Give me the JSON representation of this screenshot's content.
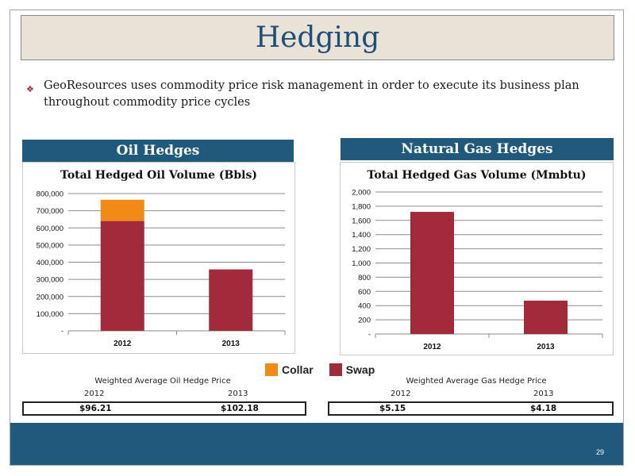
{
  "page": {
    "title": "Hedging",
    "bullet": "GeoResources uses commodity price risk management in order to execute its business plan throughout commodity price cycles",
    "page_number": "29"
  },
  "legend": {
    "items": [
      {
        "label": "Collar",
        "color": "#f28a18"
      },
      {
        "label": "Swap",
        "color": "#a12a3b"
      }
    ]
  },
  "oil": {
    "panel_title": "Oil Hedges",
    "price_title": "Weighted Average Oil Hedge Price",
    "years": [
      "2012",
      "2013"
    ],
    "prices": [
      "$96.21",
      "$102.18"
    ]
  },
  "gas": {
    "panel_title": "Natural Gas Hedges",
    "price_title": "Weighted Average Gas Hedge Price",
    "years": [
      "2012",
      "2013"
    ],
    "prices": [
      "$5.15",
      "$4.18"
    ]
  },
  "chart_data": [
    {
      "type": "bar",
      "stacked": true,
      "title": "Total Hedged Oil Volume (Bbls)",
      "categories": [
        "2012",
        "2013"
      ],
      "series": [
        {
          "name": "Swap",
          "color": "#a12a3b",
          "values": [
            640000,
            358000
          ]
        },
        {
          "name": "Collar",
          "color": "#f28a18",
          "values": [
            124000,
            0
          ]
        }
      ],
      "ylim": [
        0,
        800000
      ],
      "yticks": [
        0,
        100000,
        200000,
        300000,
        400000,
        500000,
        600000,
        700000,
        800000
      ],
      "ytick_labels": [
        "-",
        "100,000",
        "200,000",
        "300,000",
        "400,000",
        "500,000",
        "600,000",
        "700,000",
        "800,000"
      ],
      "grid": true,
      "legend": "bottom"
    },
    {
      "type": "bar",
      "stacked": true,
      "title": "Total Hedged Gas Volume (Mmbtu)",
      "categories": [
        "2012",
        "2013"
      ],
      "series": [
        {
          "name": "Swap",
          "color": "#a12a3b",
          "values": [
            1720,
            470
          ]
        }
      ],
      "ylim": [
        0,
        2000
      ],
      "yticks": [
        0,
        200,
        400,
        600,
        800,
        1000,
        1200,
        1400,
        1600,
        1800,
        2000
      ],
      "ytick_labels": [
        "-",
        "200",
        "400",
        "600",
        "800",
        "1,000",
        "1,200",
        "1,400",
        "1,600",
        "1,800",
        "2,000"
      ],
      "grid": true,
      "legend": "bottom"
    }
  ]
}
